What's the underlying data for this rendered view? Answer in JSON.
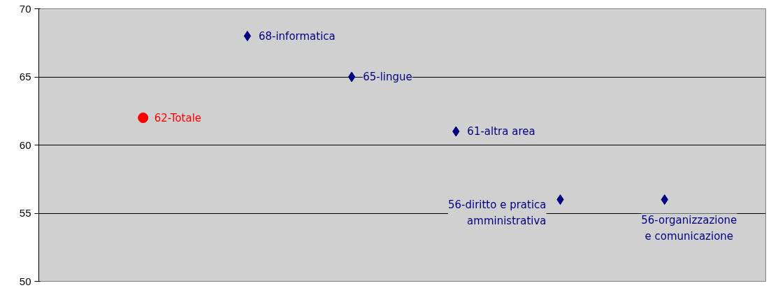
{
  "chart_data": {
    "type": "scatter",
    "categories": [
      null,
      null,
      null,
      null,
      null,
      null
    ],
    "ylim": [
      50,
      70
    ],
    "yticks": [
      50,
      55,
      60,
      65,
      70
    ],
    "grid": "y",
    "tick_labels": "y",
    "series": [
      {
        "marker": "circle",
        "color": "#ff0000",
        "values": [
          62,
          null,
          null,
          null,
          null,
          null
        ],
        "value_labels": [
          "62-Totale",
          null,
          null,
          null,
          null,
          null
        ]
      },
      {
        "marker": "diamond",
        "color": "#000080",
        "values": [
          null,
          68,
          65,
          61,
          56,
          56
        ],
        "value_labels": [
          null,
          "68-informatica",
          "65-lingue",
          "61-altra area",
          "56-diritto e pratica\namministrativa",
          "56-organizzazione\ne comunicazione"
        ]
      }
    ]
  }
}
